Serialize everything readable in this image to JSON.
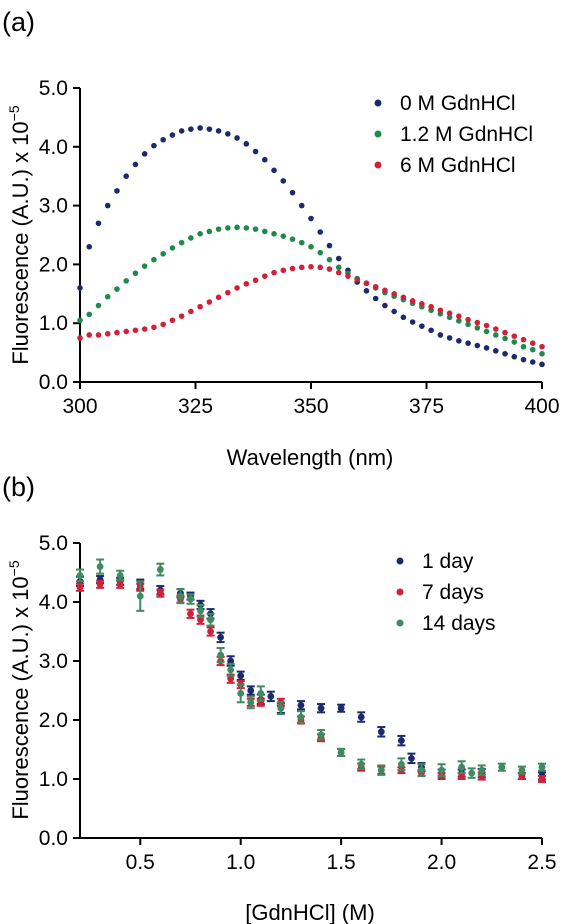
{
  "chart_data": [
    {
      "panel_label": "(a)",
      "type": "scatter",
      "xlabel": "Wavelength (nm)",
      "ylabel_main": "Fluorescence (A.U.) x 10",
      "ylabel_exp": "−5",
      "xlim": [
        300,
        400
      ],
      "ylim": [
        0,
        5
      ],
      "xticks": [
        300,
        325,
        350,
        375,
        400
      ],
      "xtick_labels": [
        "300",
        "325",
        "350",
        "375",
        "400"
      ],
      "yticks": [
        0,
        1,
        2,
        3,
        4,
        5
      ],
      "ytick_labels": [
        "0.0",
        "1.0",
        "2.0",
        "3.0",
        "4.0",
        "5.0"
      ],
      "grid": false,
      "legend_position": "top-right",
      "series": [
        {
          "name": "0 M GdnHCl",
          "color": "#1a2a6c",
          "x": [
            300,
            302,
            304,
            306,
            308,
            310,
            312,
            314,
            316,
            318,
            320,
            322,
            324,
            326,
            328,
            330,
            332,
            334,
            336,
            338,
            340,
            342,
            344,
            346,
            348,
            350,
            352,
            354,
            356,
            358,
            360,
            362,
            364,
            366,
            368,
            370,
            372,
            374,
            376,
            378,
            380,
            382,
            384,
            386,
            388,
            390,
            392,
            394,
            396,
            398,
            400
          ],
          "y": [
            1.6,
            2.3,
            2.7,
            3.0,
            3.25,
            3.5,
            3.7,
            3.88,
            4.02,
            4.12,
            4.2,
            4.27,
            4.3,
            4.32,
            4.3,
            4.27,
            4.22,
            4.15,
            4.05,
            3.92,
            3.78,
            3.6,
            3.42,
            3.22,
            3.0,
            2.78,
            2.55,
            2.32,
            2.1,
            1.9,
            1.7,
            1.55,
            1.42,
            1.3,
            1.2,
            1.1,
            1.02,
            0.95,
            0.88,
            0.8,
            0.75,
            0.7,
            0.66,
            0.62,
            0.58,
            0.53,
            0.48,
            0.43,
            0.38,
            0.34,
            0.3
          ]
        },
        {
          "name": "1.2 M GdnHCl",
          "color": "#1f8a4c",
          "x": [
            300,
            302,
            304,
            306,
            308,
            310,
            312,
            314,
            316,
            318,
            320,
            322,
            324,
            326,
            328,
            330,
            332,
            334,
            336,
            338,
            340,
            342,
            344,
            346,
            348,
            350,
            352,
            354,
            356,
            358,
            360,
            362,
            364,
            366,
            368,
            370,
            372,
            374,
            376,
            378,
            380,
            382,
            384,
            386,
            388,
            390,
            392,
            394,
            396,
            398,
            400
          ],
          "y": [
            1.05,
            1.15,
            1.3,
            1.45,
            1.58,
            1.72,
            1.85,
            1.97,
            2.08,
            2.18,
            2.28,
            2.37,
            2.45,
            2.52,
            2.56,
            2.6,
            2.62,
            2.63,
            2.62,
            2.6,
            2.56,
            2.52,
            2.48,
            2.43,
            2.37,
            2.3,
            2.2,
            2.08,
            1.95,
            1.85,
            1.76,
            1.68,
            1.6,
            1.52,
            1.46,
            1.4,
            1.34,
            1.28,
            1.22,
            1.16,
            1.1,
            1.04,
            0.98,
            0.92,
            0.86,
            0.8,
            0.74,
            0.68,
            0.6,
            0.55,
            0.48
          ]
        },
        {
          "name": "6 M GdnHCl",
          "color": "#d0203a",
          "x": [
            300,
            302,
            304,
            306,
            308,
            310,
            312,
            314,
            316,
            318,
            320,
            322,
            324,
            326,
            328,
            330,
            332,
            334,
            336,
            338,
            340,
            342,
            344,
            346,
            348,
            350,
            352,
            354,
            356,
            358,
            360,
            362,
            364,
            366,
            368,
            370,
            372,
            374,
            376,
            378,
            380,
            382,
            384,
            386,
            388,
            390,
            392,
            394,
            396,
            398,
            400
          ],
          "y": [
            0.75,
            0.8,
            0.8,
            0.82,
            0.84,
            0.86,
            0.88,
            0.9,
            0.93,
            0.98,
            1.05,
            1.12,
            1.2,
            1.28,
            1.36,
            1.44,
            1.52,
            1.6,
            1.67,
            1.73,
            1.8,
            1.86,
            1.9,
            1.93,
            1.95,
            1.96,
            1.95,
            1.92,
            1.86,
            1.8,
            1.74,
            1.68,
            1.62,
            1.56,
            1.5,
            1.44,
            1.38,
            1.33,
            1.28,
            1.22,
            1.17,
            1.12,
            1.06,
            1.01,
            0.96,
            0.9,
            0.84,
            0.78,
            0.72,
            0.66,
            0.6
          ]
        }
      ]
    },
    {
      "panel_label": "(b)",
      "type": "scatter",
      "xlabel": "[GdnHCl] (M)",
      "ylabel_main": "Fluorescence (A.U.) x 10",
      "ylabel_exp": "−5",
      "xlim": [
        0.2,
        2.5
      ],
      "ylim": [
        0,
        5
      ],
      "xticks": [
        0.5,
        1.0,
        1.5,
        2.0,
        2.5
      ],
      "xtick_labels": [
        "0.5",
        "1.0",
        "1.5",
        "2.0",
        "2.5"
      ],
      "yticks": [
        0,
        1,
        2,
        3,
        4,
        5
      ],
      "ytick_labels": [
        "0.0",
        "1.0",
        "2.0",
        "3.0",
        "4.0",
        "5.0"
      ],
      "grid": false,
      "legend_position": "top-right",
      "series": [
        {
          "name": "1 day",
          "color": "#1a2a6c",
          "x": [
            0.2,
            0.3,
            0.4,
            0.5,
            0.6,
            0.7,
            0.75,
            0.8,
            0.85,
            0.9,
            0.95,
            1.0,
            1.05,
            1.1,
            1.15,
            1.2,
            1.3,
            1.4,
            1.5,
            1.6,
            1.7,
            1.8,
            1.85,
            1.9,
            2.0,
            2.1,
            2.2,
            2.4,
            2.5
          ],
          "y": [
            4.35,
            4.38,
            4.35,
            4.3,
            4.2,
            4.15,
            4.1,
            3.95,
            3.8,
            3.4,
            3.0,
            2.75,
            2.5,
            2.35,
            2.4,
            2.2,
            2.25,
            2.2,
            2.2,
            2.05,
            1.8,
            1.65,
            1.35,
            1.2,
            1.1,
            1.1,
            1.1,
            1.05,
            1.05
          ],
          "err": [
            0.08,
            0.06,
            0.06,
            0.08,
            0.07,
            0.07,
            0.06,
            0.07,
            0.08,
            0.08,
            0.08,
            0.07,
            0.07,
            0.08,
            0.08,
            0.08,
            0.07,
            0.07,
            0.06,
            0.08,
            0.08,
            0.08,
            0.08,
            0.07,
            0.06,
            0.06,
            0.07,
            0.05,
            0.06
          ]
        },
        {
          "name": "7 days",
          "color": "#d0203a",
          "x": [
            0.2,
            0.3,
            0.4,
            0.5,
            0.6,
            0.7,
            0.75,
            0.8,
            0.85,
            0.9,
            0.95,
            1.0,
            1.05,
            1.1,
            1.2,
            1.3,
            1.4,
            1.5,
            1.6,
            1.7,
            1.8,
            1.9,
            2.0,
            2.1,
            2.2,
            2.4,
            2.5
          ],
          "y": [
            4.25,
            4.3,
            4.3,
            4.25,
            4.15,
            4.05,
            3.8,
            3.7,
            3.5,
            3.0,
            2.7,
            2.6,
            2.3,
            2.3,
            2.3,
            2.0,
            1.7,
            1.45,
            1.2,
            1.15,
            1.15,
            1.1,
            1.05,
            1.05,
            1.05,
            1.05,
            1.0
          ],
          "err": [
            0.06,
            0.06,
            0.06,
            0.06,
            0.06,
            0.06,
            0.07,
            0.07,
            0.07,
            0.07,
            0.07,
            0.06,
            0.06,
            0.06,
            0.06,
            0.06,
            0.06,
            0.06,
            0.06,
            0.06,
            0.05,
            0.05,
            0.05,
            0.05,
            0.06,
            0.05,
            0.05
          ]
        },
        {
          "name": "14 days",
          "color": "#3f8a5e",
          "x": [
            0.2,
            0.3,
            0.4,
            0.5,
            0.6,
            0.7,
            0.75,
            0.8,
            0.85,
            0.9,
            0.95,
            1.0,
            1.05,
            1.1,
            1.2,
            1.3,
            1.4,
            1.5,
            1.6,
            1.7,
            1.8,
            1.9,
            2.0,
            2.1,
            2.15,
            2.2,
            2.3,
            2.4,
            2.5
          ],
          "y": [
            4.45,
            4.6,
            4.45,
            4.1,
            4.55,
            4.1,
            4.05,
            3.85,
            3.7,
            3.1,
            2.85,
            2.45,
            2.3,
            2.45,
            2.2,
            2.05,
            1.75,
            1.45,
            1.25,
            1.15,
            1.25,
            1.15,
            1.15,
            1.2,
            1.1,
            1.15,
            1.2,
            1.15,
            1.2
          ],
          "err": [
            0.1,
            0.12,
            0.08,
            0.25,
            0.1,
            0.12,
            0.08,
            0.1,
            0.1,
            0.12,
            0.1,
            0.15,
            0.1,
            0.12,
            0.1,
            0.1,
            0.08,
            0.06,
            0.08,
            0.08,
            0.1,
            0.1,
            0.1,
            0.1,
            0.08,
            0.08,
            0.06,
            0.06,
            0.06
          ]
        }
      ]
    }
  ]
}
